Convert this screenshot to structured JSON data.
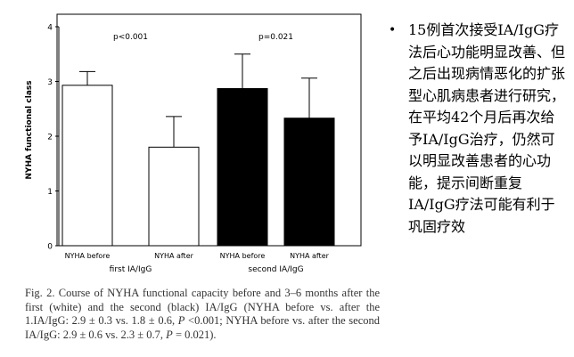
{
  "chart_data": {
    "type": "bar",
    "ylabel": "NYHA functional class",
    "ylim": [
      0,
      4
    ],
    "y_ticks": [
      "0",
      "1",
      "2",
      "3",
      "4"
    ],
    "grid": false,
    "bars": [
      {
        "label": "NYHA before",
        "value": 2.93,
        "error": 0.25,
        "fill": "#ffffff"
      },
      {
        "label": "NYHA after",
        "value": 1.8,
        "error": 0.56,
        "fill": "#ffffff"
      },
      {
        "label": "NYHA before",
        "value": 2.87,
        "error": 0.63,
        "fill": "#000000"
      },
      {
        "label": "NYHA after",
        "value": 2.33,
        "error": 0.73,
        "fill": "#000000"
      }
    ],
    "groups": [
      {
        "label": "first IA/IgG",
        "bars": [
          0,
          1
        ],
        "pvalue": "p<0.001"
      },
      {
        "label": "second IA/IgG",
        "bars": [
          2,
          3
        ],
        "pvalue": "p=0.021"
      }
    ]
  },
  "caption": {
    "prefix": "Fig. 2.  Course of NYHA functional capacity before and 3–6 months after the first (white) and the second (black) IA/IgG (NYHA before vs. after the 1.IA/IgG: 2.9 ± 0.3  vs.  1.8 ± 0.6,",
    "p1_symbol": "P",
    "p1_value": "<0.001; NYHA before vs. after the second IA/IgG: 2.9 ± 0.6 vs. 2.3 ± 0.7,",
    "p2_symbol": "P",
    "p2_value": "= 0.021)."
  },
  "side_note": {
    "bullet": "•",
    "text": "15例首次接受IA/IgG疗法后心功能明显改善、但之后出现病情恶化的扩张型心肌病患者进行研究，在平均42个月后再次给予IA/IgG治疗，仍然可以明显改善患者的心功能，提示间断重复IA/IgG疗法可能有利于巩固疗效"
  }
}
